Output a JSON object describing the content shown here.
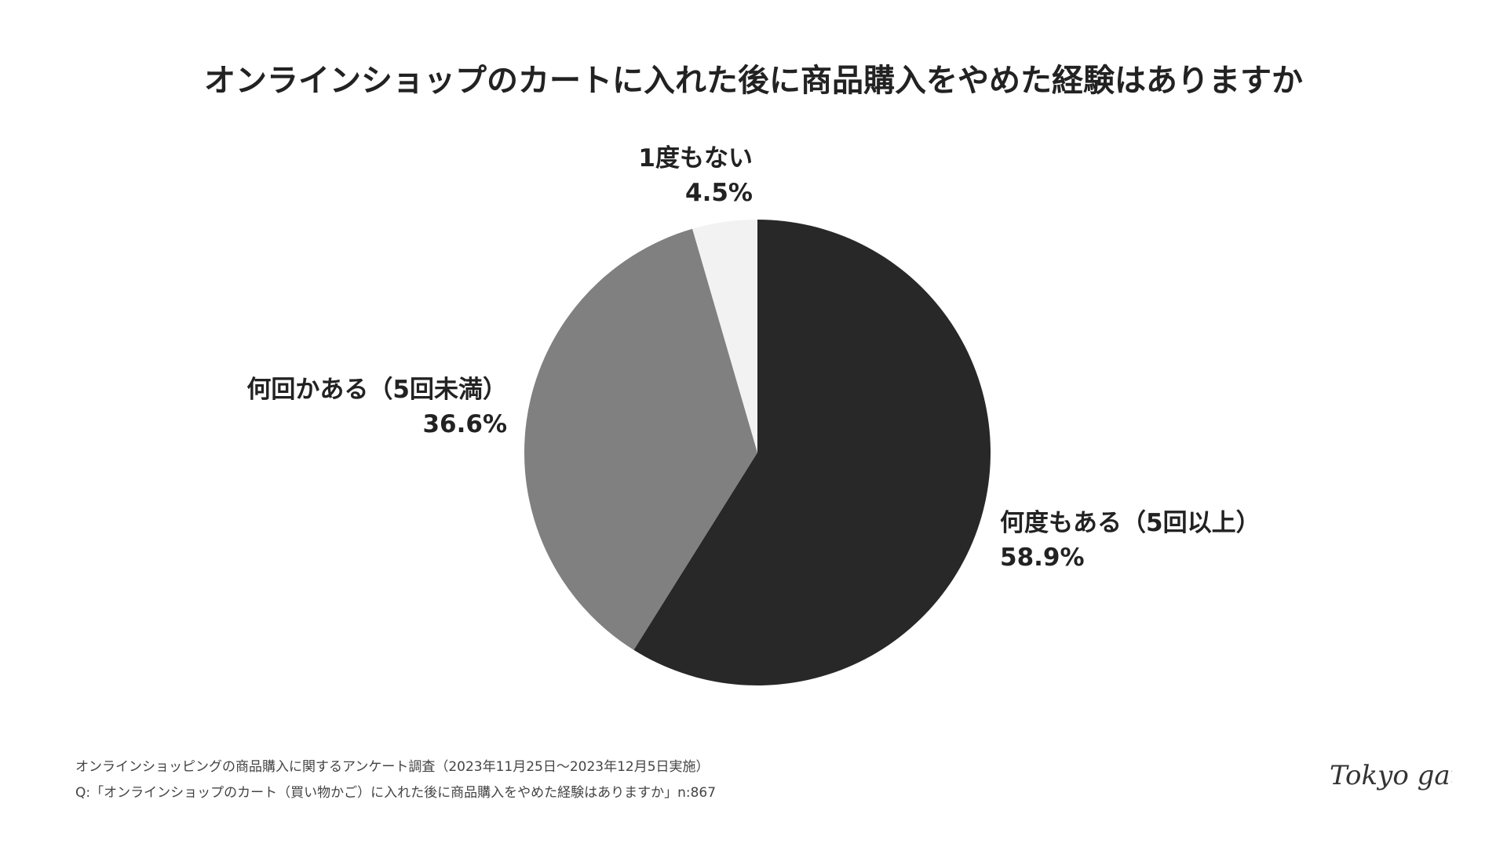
{
  "chart_data": {
    "type": "pie",
    "title": "オンラインショップのカートに入れた後に商品購入をやめた経験はありますか",
    "slices": [
      {
        "name": "何度もある（5回以上）",
        "value": 58.9,
        "value_label": "58.9%",
        "color": "#282828"
      },
      {
        "name": "何回かある（5回未満）",
        "value": 36.6,
        "value_label": "36.6%",
        "color": "#808080"
      },
      {
        "name": "1度もない",
        "value": 4.5,
        "value_label": "4.5%",
        "color": "#f2f2f2"
      }
    ],
    "start": "12 o'clock",
    "direction": "clockwise"
  },
  "footnotes": {
    "line1": "オンラインショッピングの商品購入に関するアンケート調査（2023年11月25日〜2023年12月5日実施）",
    "line2": "Q:「オンラインショップのカート（買い物かご）に入れた後に商品購入をやめた経験はありますか」n:867"
  },
  "logo": {
    "text": "Tokyo gate"
  }
}
